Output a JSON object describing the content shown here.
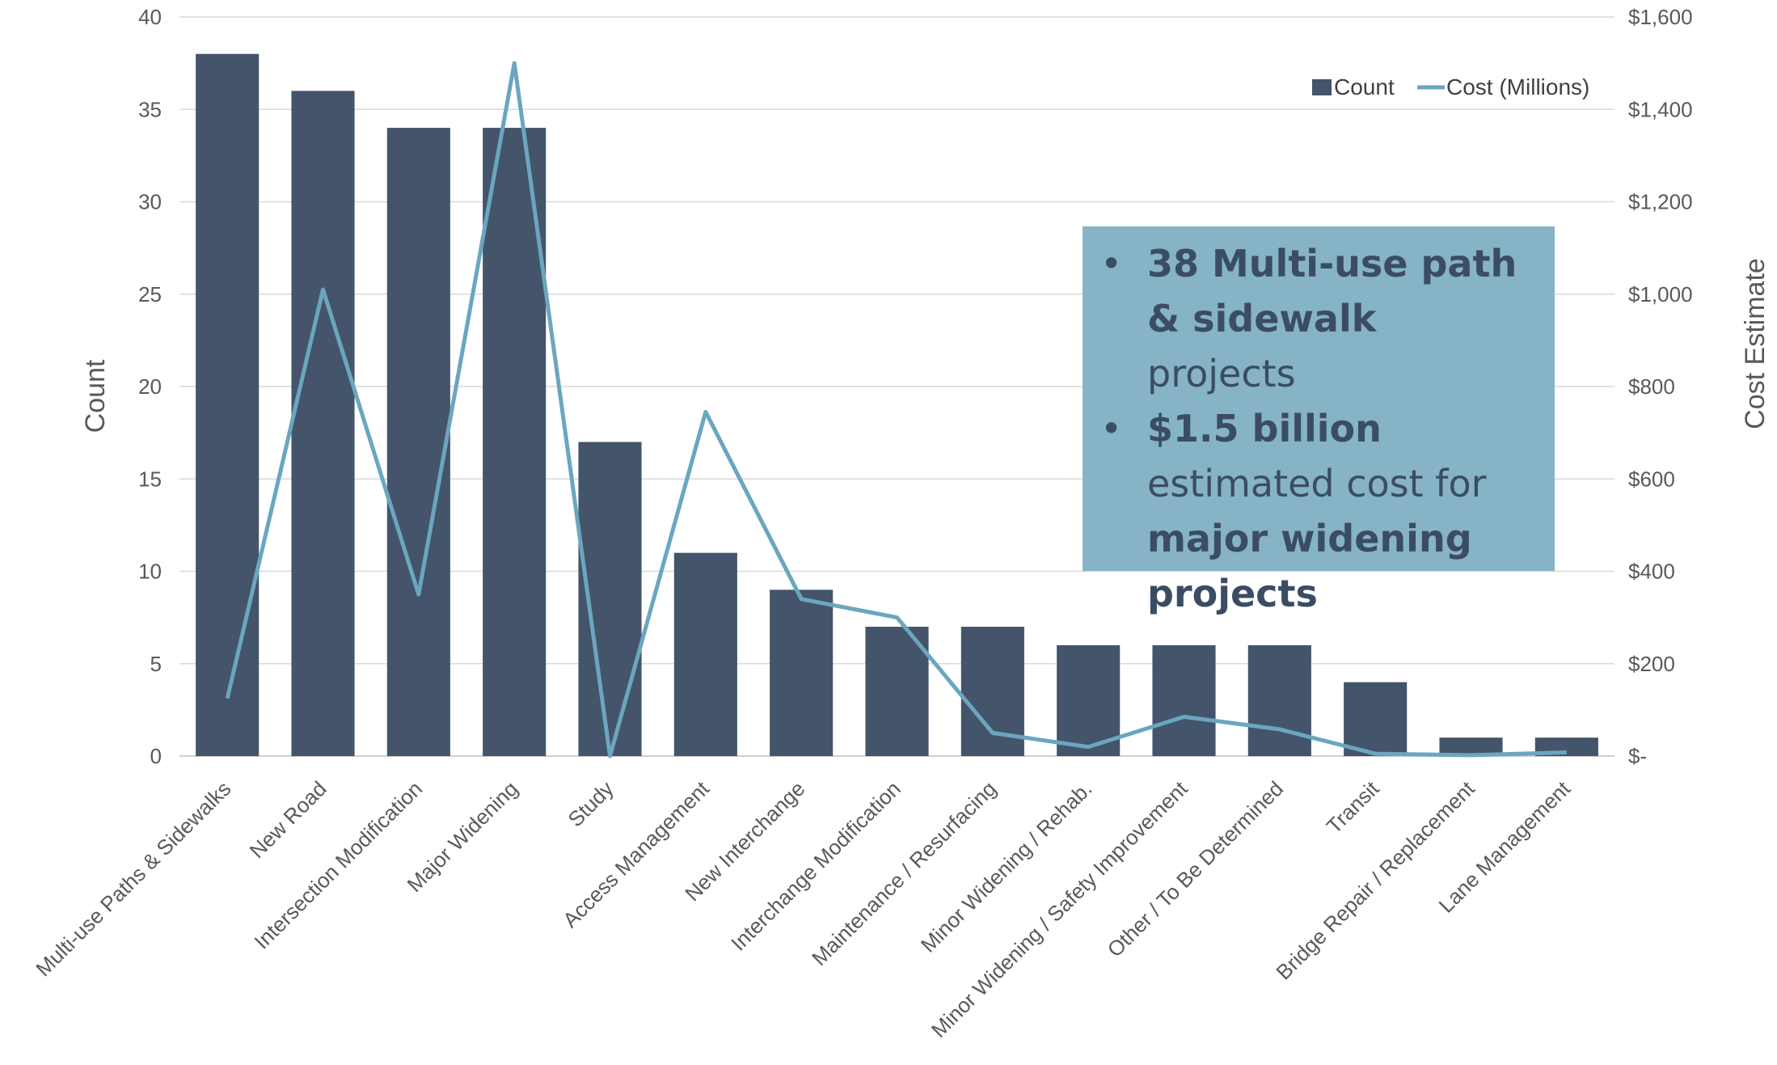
{
  "chart_data": {
    "type": "bar",
    "categories": [
      "Multi-use Paths & Sidewalks",
      "New Road",
      "Intersection Modification",
      "Major Widening",
      "Study",
      "Access Management",
      "New Interchange",
      "Interchange Modification",
      "Maintenance / Resurfacing",
      "Minor Widening / Rehab.",
      "Minor Widening / Safety Improvement",
      "Other / To Be Determined",
      "Transit",
      "Bridge Repair / Replacement",
      "Lane Management"
    ],
    "series": [
      {
        "name": "Count",
        "type": "bar",
        "axis": "left",
        "color": "#44546a",
        "values": [
          38,
          36,
          34,
          34,
          17,
          11,
          9,
          7,
          7,
          6,
          6,
          6,
          4,
          1,
          1
        ]
      },
      {
        "name": "Cost (Millions)",
        "type": "line",
        "axis": "right",
        "color": "#6aa6bf",
        "values": [
          125,
          1010,
          350,
          1500,
          0,
          745,
          340,
          300,
          50,
          20,
          85,
          58,
          5,
          2,
          8
        ]
      }
    ],
    "ylabel": "Count",
    "ylabel_right": "Cost Estimate",
    "ylim": [
      0,
      40
    ],
    "ylim_right": [
      0,
      1600
    ],
    "yticks": [
      "0",
      "5",
      "10",
      "15",
      "20",
      "25",
      "30",
      "35",
      "40"
    ],
    "yticks_right": [
      "$-",
      "$200",
      "$400",
      "$600",
      "$800",
      "$1,000",
      "$1,200",
      "$1,400",
      "$1,600"
    ],
    "grid": true,
    "legend_position": "top-right"
  },
  "callout": {
    "bullet1_bold": "38 Multi-use path & sidewalk",
    "bullet1_rest": " projects",
    "bullet2_bold1": "$1.5 billion",
    "bullet2_rest": " estimated cost for ",
    "bullet2_bold2": "major widening projects"
  },
  "colors": {
    "bar": "#44546a",
    "line": "#6aa6bf",
    "callout_bg": "#86b3c6",
    "callout_text": "#3a4d64",
    "grid": "#d9d9d9"
  }
}
